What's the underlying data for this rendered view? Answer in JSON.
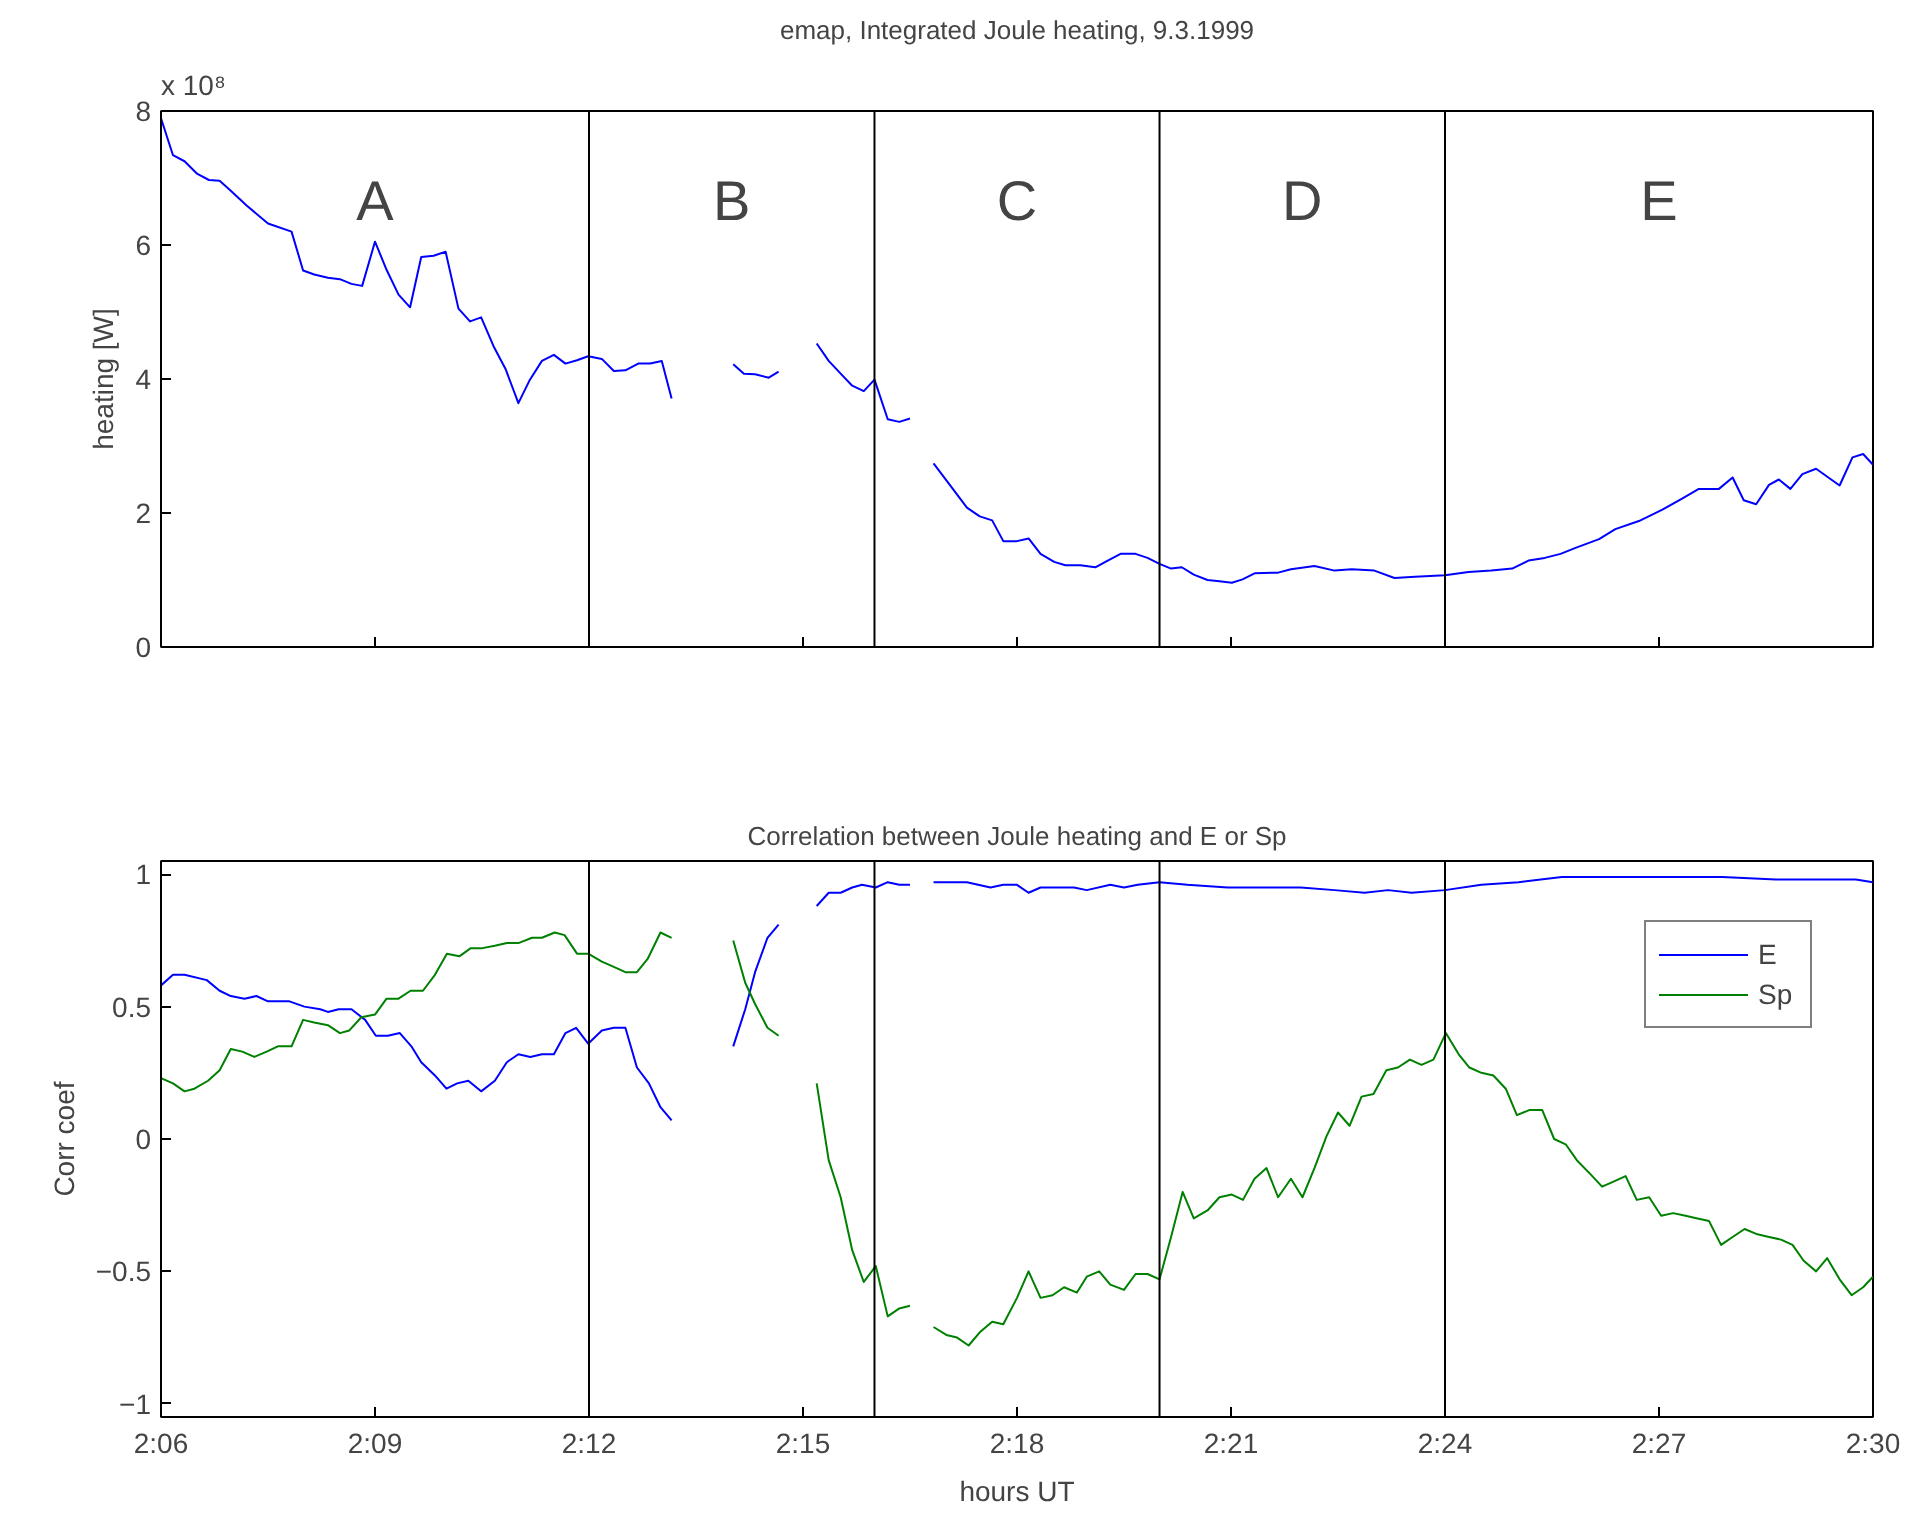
{
  "chart_data": [
    {
      "type": "line",
      "title": "emap, Integrated Joule heating, 9.3.1999",
      "ylabel": "heating [W]",
      "annotations": [
        "x 10⁸",
        "A",
        "B",
        "C",
        "D",
        "E"
      ],
      "xlim": [
        2.1,
        2.5
      ],
      "ylim": [
        0,
        8
      ],
      "xticks": [
        {
          "value": 2.1,
          "label": null
        },
        {
          "value": 2.15,
          "label": null
        },
        {
          "value": 2.2,
          "label": null
        },
        {
          "value": 2.25,
          "label": null
        },
        {
          "value": 2.3,
          "label": null
        },
        {
          "value": 2.35,
          "label": null
        },
        {
          "value": 2.4,
          "label": null
        },
        {
          "value": 2.45,
          "label": null
        },
        {
          "value": 2.5,
          "label": null
        }
      ],
      "yticks": [
        0,
        2,
        4,
        6,
        8
      ],
      "tick_labels": "y",
      "grid": false,
      "legend": false,
      "marker": "none",
      "line_style": "solid",
      "ref_lines": [
        {
          "axis": "x",
          "value": 2.2,
          "label": null,
          "color": "#000000"
        },
        {
          "axis": "x",
          "value": 2.2667,
          "label": null,
          "color": "#000000"
        },
        {
          "axis": "x",
          "value": 2.3333,
          "label": null,
          "color": "#000000"
        },
        {
          "axis": "x",
          "value": 2.4,
          "label": null,
          "color": "#000000"
        }
      ],
      "series": [
        {
          "color": "#0000ff",
          "x": [
            2.1,
            2.1028,
            2.1055,
            2.1085,
            2.1112,
            2.1137,
            2.1163,
            2.12,
            2.125,
            2.1305,
            2.1332,
            2.1358,
            2.139,
            2.1418,
            2.1445,
            2.147,
            2.15,
            2.1527,
            2.1555,
            2.1582,
            2.1608,
            2.1637,
            2.1665,
            2.1695,
            2.1722,
            2.1748,
            2.1777,
            2.1805,
            2.1835,
            2.1862,
            2.189,
            2.1918,
            2.1945,
            2.1972,
            2.1998,
            2.203,
            2.2058,
            2.2085,
            2.2115,
            2.2143,
            2.217,
            2.2193,
            2.2267,
            2.2337,
            2.2362,
            2.2388,
            2.242,
            2.2443,
            2.2483,
            2.2532,
            2.256,
            2.2588,
            2.2615,
            2.2642,
            2.2667,
            2.2698,
            2.2725,
            2.275,
            2.2775,
            2.2805,
            2.2843,
            2.2883,
            2.2913,
            2.2942,
            2.2968,
            2.3,
            2.3027,
            2.3055,
            2.3087,
            2.3113,
            2.3148,
            2.3183,
            2.3212,
            2.3242,
            2.3277,
            2.3305,
            2.3333,
            2.336,
            2.3385,
            2.3413,
            2.3445,
            2.3473,
            2.3502,
            2.3527,
            2.3555,
            2.361,
            2.364,
            2.3695,
            2.3742,
            2.3782,
            2.3835,
            2.3882,
            2.393,
            2.4,
            2.4055,
            2.4108,
            2.4157,
            2.4195,
            2.4233,
            2.427,
            2.4305,
            2.436,
            2.4398,
            2.4453,
            2.4508,
            2.4555,
            2.4593,
            2.464,
            2.4672,
            2.4698,
            2.4727,
            2.4757,
            2.478,
            2.4807,
            2.4835,
            2.4867,
            2.4922,
            2.4952,
            2.4977,
            2.5
          ],
          "values": [
            7.89,
            7.34,
            7.25,
            7.06,
            6.97,
            6.96,
            6.81,
            6.59,
            6.32,
            6.2,
            5.62,
            5.56,
            5.51,
            5.49,
            5.42,
            5.39,
            6.05,
            5.63,
            5.26,
            5.07,
            5.82,
            5.84,
            5.9,
            5.05,
            4.86,
            4.92,
            4.49,
            4.15,
            3.64,
            3.99,
            4.27,
            4.36,
            4.23,
            4.28,
            4.34,
            4.3,
            4.12,
            4.13,
            4.23,
            4.23,
            4.27,
            3.71,
            null,
            4.22,
            4.08,
            4.07,
            4.02,
            4.11,
            null,
            4.53,
            4.27,
            4.08,
            3.9,
            3.82,
            3.99,
            3.4,
            3.36,
            3.41,
            null,
            2.74,
            2.42,
            2.08,
            1.95,
            1.89,
            1.58,
            1.58,
            1.62,
            1.39,
            1.27,
            1.22,
            1.22,
            1.19,
            1.29,
            1.39,
            1.39,
            1.33,
            1.24,
            1.17,
            1.19,
            1.08,
            1.0,
            0.98,
            0.96,
            1.01,
            1.1,
            1.11,
            1.16,
            1.21,
            1.14,
            1.16,
            1.14,
            1.03,
            1.05,
            1.07,
            1.12,
            1.14,
            1.17,
            1.29,
            1.33,
            1.39,
            1.48,
            1.61,
            1.76,
            1.88,
            2.05,
            2.22,
            2.36,
            2.36,
            2.53,
            2.19,
            2.13,
            2.42,
            2.5,
            2.36,
            2.58,
            2.66,
            2.41,
            2.83,
            2.88,
            2.72
          ]
        }
      ]
    },
    {
      "type": "line",
      "title": "Correlation between Joule heating and E or Sp",
      "xlabel": "hours UT",
      "ylabel": "Corr coef",
      "xlim": [
        2.1,
        2.5
      ],
      "ylim": [
        -1.05,
        1.05
      ],
      "xticks": [
        {
          "value": 2.1,
          "label": "2:06"
        },
        {
          "value": 2.15,
          "label": "2:09"
        },
        {
          "value": 2.2,
          "label": "2:12"
        },
        {
          "value": 2.25,
          "label": "2:15"
        },
        {
          "value": 2.3,
          "label": "2:18"
        },
        {
          "value": 2.35,
          "label": "2:21"
        },
        {
          "value": 2.4,
          "label": "2:24"
        },
        {
          "value": 2.45,
          "label": "2:27"
        },
        {
          "value": 2.5,
          "label": "2:30"
        }
      ],
      "yticks": [
        {
          "value": -1,
          "label": "−1"
        },
        {
          "value": -0.5,
          "label": "−0.5"
        },
        0,
        0.5,
        1
      ],
      "grid": false,
      "legend": "top right",
      "marker": "none",
      "line_style": "solid",
      "ref_lines": [
        {
          "axis": "x",
          "value": 2.2,
          "label": null,
          "color": "#000000"
        },
        {
          "axis": "x",
          "value": 2.2667,
          "label": null,
          "color": "#000000"
        },
        {
          "axis": "x",
          "value": 2.3333,
          "label": null,
          "color": "#000000"
        },
        {
          "axis": "x",
          "value": 2.4,
          "label": null,
          "color": "#000000"
        }
      ],
      "series": [
        {
          "name": "E",
          "color": "#0000ff",
          "x": [
            2.1,
            2.1028,
            2.1055,
            2.1107,
            2.1137,
            2.1163,
            2.1195,
            2.1223,
            2.125,
            2.13,
            2.1335,
            2.1372,
            2.139,
            2.1415,
            2.1445,
            2.1477,
            2.1502,
            2.153,
            2.1558,
            2.1585,
            2.1608,
            2.164,
            2.1667,
            2.1692,
            2.1718,
            2.1748,
            2.178,
            2.1808,
            2.1835,
            2.1863,
            2.189,
            2.1918,
            2.1945,
            2.197,
            2.1998,
            2.203,
            2.2058,
            2.2085,
            2.2112,
            2.214,
            2.2167,
            2.2193,
            2.2267,
            2.2337,
            2.2365,
            2.2388,
            2.2417,
            2.2443,
            2.2483,
            2.2532,
            2.256,
            2.2588,
            2.2615,
            2.2638,
            2.267,
            2.2698,
            2.2725,
            2.275,
            2.2775,
            2.2805,
            2.2883,
            2.2938,
            2.2968,
            2.3,
            2.3027,
            2.3055,
            2.3133,
            2.3163,
            2.3218,
            2.325,
            2.3282,
            2.3333,
            2.3398,
            2.3492,
            2.3585,
            2.3663,
            2.3742,
            2.3812,
            2.3867,
            2.3922,
            2.4,
            2.4085,
            2.4172,
            2.4273,
            2.4398,
            2.4507,
            2.4648,
            2.4773,
            2.4882,
            2.496,
            2.5
          ],
          "values": [
            0.58,
            0.62,
            0.62,
            0.6,
            0.56,
            0.54,
            0.53,
            0.54,
            0.52,
            0.52,
            0.5,
            0.49,
            0.48,
            0.49,
            0.49,
            0.45,
            0.39,
            0.39,
            0.4,
            0.35,
            0.29,
            0.24,
            0.19,
            0.21,
            0.22,
            0.18,
            0.22,
            0.29,
            0.32,
            0.31,
            0.32,
            0.32,
            0.4,
            0.42,
            0.36,
            0.41,
            0.42,
            0.42,
            0.27,
            0.21,
            0.12,
            0.07,
            null,
            0.35,
            0.49,
            0.63,
            0.76,
            0.81,
            null,
            0.88,
            0.93,
            0.93,
            0.95,
            0.96,
            0.95,
            0.97,
            0.96,
            0.96,
            null,
            0.97,
            0.97,
            0.95,
            0.96,
            0.96,
            0.93,
            0.95,
            0.95,
            0.94,
            0.96,
            0.95,
            0.96,
            0.97,
            0.96,
            0.95,
            0.95,
            0.95,
            0.94,
            0.93,
            0.94,
            0.93,
            0.94,
            0.96,
            0.97,
            0.99,
            0.99,
            0.99,
            0.99,
            0.98,
            0.98,
            0.98,
            0.97
          ]
        },
        {
          "name": "Sp",
          "color": "#008000",
          "x": [
            2.1,
            2.1028,
            2.1055,
            2.1078,
            2.111,
            2.1137,
            2.1163,
            2.119,
            2.1218,
            2.1247,
            2.1273,
            2.1305,
            2.1332,
            2.1358,
            2.139,
            2.1418,
            2.144,
            2.1468,
            2.15,
            2.1527,
            2.1555,
            2.1583,
            2.1612,
            2.164,
            2.1668,
            2.1697,
            2.1723,
            2.1748,
            2.178,
            2.1808,
            2.1835,
            2.1867,
            2.189,
            2.192,
            2.1943,
            2.1972,
            2.1998,
            2.203,
            2.2058,
            2.2085,
            2.2112,
            2.2137,
            2.2167,
            2.2193,
            2.2267,
            2.2337,
            2.2365,
            2.2388,
            2.2417,
            2.2443,
            2.2483,
            2.2532,
            2.256,
            2.2588,
            2.2615,
            2.2642,
            2.267,
            2.2698,
            2.2725,
            2.275,
            2.2775,
            2.2805,
            2.2835,
            2.286,
            2.2887,
            2.2913,
            2.2942,
            2.2968,
            2.3,
            2.3027,
            2.3055,
            2.3083,
            2.311,
            2.314,
            2.3163,
            2.3192,
            2.3218,
            2.325,
            2.3277,
            2.3305,
            2.3333,
            2.336,
            2.3387,
            2.3413,
            2.3445,
            2.3473,
            2.3502,
            2.3528,
            2.3555,
            2.3583,
            2.361,
            2.364,
            2.3667,
            2.3695,
            2.3723,
            2.375,
            2.3777,
            2.3805,
            2.3833,
            2.3863,
            2.389,
            2.3918,
            2.3945,
            2.3973,
            2.4002,
            2.4032,
            2.4057,
            2.4085,
            2.4113,
            2.4142,
            2.4168,
            2.4198,
            2.4227,
            2.4255,
            2.4282,
            2.4308,
            2.4338,
            2.4367,
            2.4395,
            2.4422,
            2.4448,
            2.4477,
            2.4505,
            2.4533,
            2.4562,
            2.459,
            2.4617,
            2.4645,
            2.4672,
            2.47,
            2.473,
            2.4757,
            2.4785,
            2.4812,
            2.4838,
            2.4867,
            2.4893,
            2.4922,
            2.495,
            2.4977,
            2.5
          ],
          "values": [
            0.23,
            0.21,
            0.18,
            0.19,
            0.22,
            0.26,
            0.34,
            0.33,
            0.31,
            0.33,
            0.35,
            0.35,
            0.45,
            0.44,
            0.43,
            0.4,
            0.41,
            0.46,
            0.47,
            0.53,
            0.53,
            0.56,
            0.56,
            0.62,
            0.7,
            0.69,
            0.72,
            0.72,
            0.73,
            0.74,
            0.74,
            0.76,
            0.76,
            0.78,
            0.77,
            0.7,
            0.7,
            0.67,
            0.65,
            0.63,
            0.63,
            0.68,
            0.78,
            0.76,
            null,
            0.75,
            0.59,
            0.51,
            0.42,
            0.39,
            null,
            0.21,
            -0.08,
            -0.22,
            -0.42,
            -0.54,
            -0.48,
            -0.67,
            -0.64,
            -0.63,
            null,
            -0.71,
            -0.74,
            -0.75,
            -0.78,
            -0.73,
            -0.69,
            -0.7,
            -0.6,
            -0.5,
            -0.6,
            -0.59,
            -0.56,
            -0.58,
            -0.52,
            -0.5,
            -0.55,
            -0.57,
            -0.51,
            -0.51,
            -0.53,
            -0.37,
            -0.2,
            -0.3,
            -0.27,
            -0.22,
            -0.21,
            -0.23,
            -0.15,
            -0.11,
            -0.22,
            -0.15,
            -0.22,
            -0.11,
            0.01,
            0.1,
            0.05,
            0.16,
            0.17,
            0.26,
            0.27,
            0.3,
            0.28,
            0.3,
            0.4,
            0.32,
            0.27,
            0.25,
            0.24,
            0.19,
            0.09,
            0.11,
            0.11,
            0.0,
            -0.02,
            -0.08,
            -0.13,
            -0.18,
            -0.16,
            -0.14,
            -0.23,
            -0.22,
            -0.29,
            -0.28,
            -0.29,
            -0.3,
            -0.31,
            -0.4,
            -0.37,
            -0.34,
            -0.36,
            -0.37,
            -0.38,
            -0.4,
            -0.46,
            -0.5,
            -0.45,
            -0.53,
            -0.59,
            -0.56,
            -0.52
          ]
        }
      ]
    }
  ]
}
